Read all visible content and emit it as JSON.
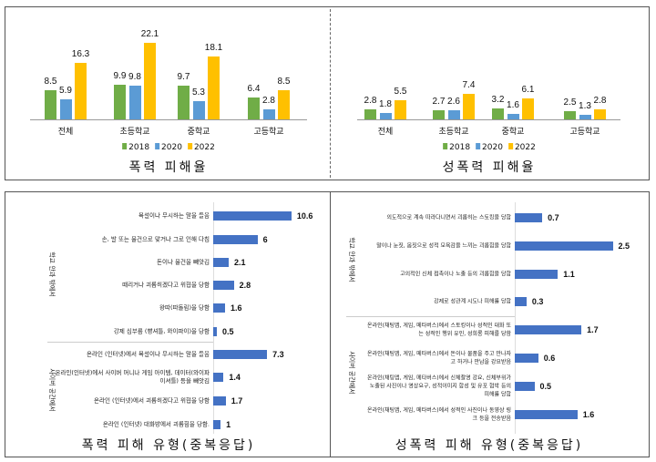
{
  "colors": {
    "y2018": "#70ad47",
    "y2020": "#5b9bd5",
    "y2022": "#ffc000",
    "hbar": "#4472c4"
  },
  "chart_data": [
    {
      "type": "bar",
      "title": "폭력 피해율",
      "categories": [
        "전체",
        "초등학교",
        "중학교",
        "고등학교"
      ],
      "series": [
        {
          "name": "2018",
          "values": [
            8.5,
            9.9,
            9.7,
            6.4
          ]
        },
        {
          "name": "2020",
          "values": [
            5.9,
            9.8,
            5.3,
            2.8
          ]
        },
        {
          "name": "2022",
          "values": [
            16.3,
            22.1,
            18.1,
            8.5
          ]
        }
      ],
      "legend": "bottom",
      "grid": false
    },
    {
      "type": "bar",
      "title": "성폭력 피해율",
      "categories": [
        "전체",
        "초등학교",
        "중학교",
        "고등학교"
      ],
      "series": [
        {
          "name": "2018",
          "values": [
            2.8,
            2.7,
            3.2,
            2.5
          ]
        },
        {
          "name": "2020",
          "values": [
            1.8,
            2.6,
            1.6,
            1.3
          ]
        },
        {
          "name": "2022",
          "values": [
            5.5,
            7.4,
            6.1,
            2.8
          ]
        }
      ],
      "legend": "bottom",
      "grid": false
    },
    {
      "type": "bar",
      "orientation": "horizontal",
      "title": "폭력 피해 유형(중복응답)",
      "groups": [
        {
          "label": "학교 안과 밖에서",
          "count": 6
        },
        {
          "label": "사이버 공간에서",
          "count": 4
        }
      ],
      "categories": [
        "욕설이나 무시하는 말을 들음",
        "손, 발 또는 물건으로 맞거나 그로 인해 다침",
        "돈이나 물건을 빼앗김",
        "때리거나 괴롭히겠다고 위협을 당함",
        "왕따(따돌림)을 당함",
        "강제 심부름 (빵셔틀, 와이파이)을 당함",
        "온라인 (인터넷)에서 욕설이나 무시하는 말을 들음",
        "온라인(인터넷)에서 사이버 머니나 게임 아이템, 데이터(와이파이셔틀) 등을 빼앗김",
        "온라인 (인터넷)에서 괴롭히겠다고 위협을 당함",
        "온라인 (인터넷) 대화방에서 괴롭힘을 당함."
      ],
      "values": [
        10.6,
        6.0,
        2.1,
        2.8,
        1.6,
        0.5,
        7.3,
        1.4,
        1.7,
        1.0
      ]
    },
    {
      "type": "bar",
      "orientation": "horizontal",
      "title": "성폭력 피해 유형(중복응답)",
      "groups": [
        {
          "label": "학교 안과 밖에서",
          "count": 4
        },
        {
          "label": "사이버 공간에서",
          "count": 4
        }
      ],
      "categories": [
        "의도적으로 계속 따라다니면서 괴롭히는 스토킹을 당함",
        "말이나 눈짓, 몸짓으로 성적 모욕감을 느끼는 괴롭힘을 당함",
        "고의적인 신체 접촉이나 노출 등의 괴롭힘을 당함",
        "강제로 성관계 시도나 피해를 당함",
        "온라인(채팅앱, 게임, 메타버스)에서 스토킹이나 성적인 대화 또는 성적인 행위 유인, 성희롱 피해를 당함",
        "온라인(채팅앱, 게임, 메타버스)에서 돈이나 물품을 주고 만나자고 하거나 만남을 강요받음",
        "온라인(채팅앱, 게임, 메타버스)에서 신체촬영 강요, 신체부위가 노출된 사진이나 영상요구, 성적이미지 합성 및 유포 협박 등의 피해를 당함",
        "온라인(채팅앱, 게임, 메타버스)에서 성적인 사진이나 동영상 링크 등을 전송받음"
      ],
      "values": [
        0.7,
        2.5,
        1.1,
        0.3,
        1.7,
        0.6,
        0.5,
        1.6
      ]
    }
  ]
}
